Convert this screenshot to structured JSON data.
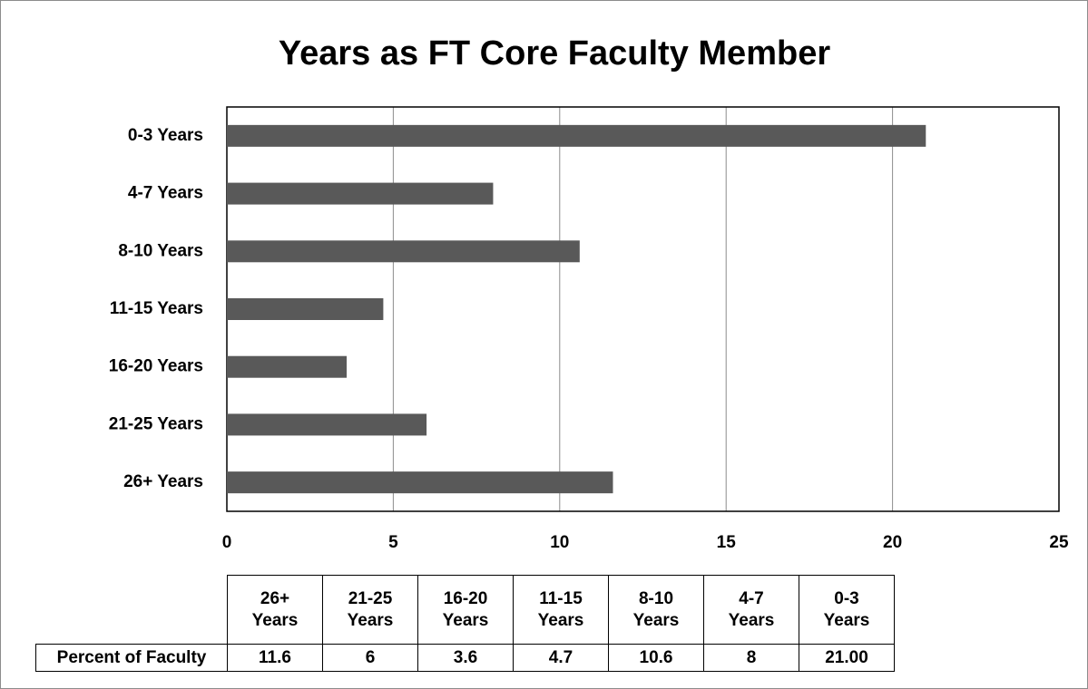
{
  "chart_data": {
    "type": "bar",
    "orientation": "horizontal",
    "title": "Years as FT Core Faculty Member",
    "categories": [
      "26+ Years",
      "21-25 Years",
      "16-20 Years",
      "11-15 Years",
      "8-10 Years",
      "4-7 Years",
      "0-3 Years"
    ],
    "series": [
      {
        "name": "Percent of Faculty",
        "color": "#595959",
        "values": [
          11.6,
          6,
          3.6,
          4.7,
          10.6,
          8,
          21
        ],
        "value_labels": [
          "11.6",
          "6",
          "3.6",
          "4.7",
          "10.6",
          "8",
          "21.00"
        ]
      }
    ],
    "xlim": [
      0,
      25
    ],
    "xticks": [
      0,
      5,
      10,
      15,
      20,
      25
    ],
    "grid": true,
    "data_table": true
  }
}
